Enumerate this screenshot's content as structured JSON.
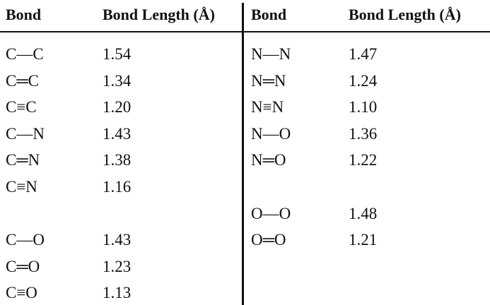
{
  "table": {
    "header": [
      "Bond",
      "Bond Length (Å)",
      "Bond",
      "Bond Length (Å)"
    ],
    "rows": [
      [
        "C—C",
        "1.54",
        "N—N",
        "1.47"
      ],
      [
        "C═C",
        "1.34",
        "N═N",
        "1.24"
      ],
      [
        "C≡C",
        "1.20",
        "N≡N",
        "1.10"
      ],
      [
        "C—N",
        "1.43",
        "N—O",
        "1.36"
      ],
      [
        "C═N",
        "1.38",
        "N═O",
        "1.22"
      ],
      [
        "C≡N",
        "1.16",
        null,
        null
      ],
      [
        null,
        null,
        "O—O",
        "1.48"
      ],
      [
        "C—O",
        "1.43",
        "O═O",
        "1.21"
      ],
      [
        "C═O",
        "1.23",
        null,
        null
      ],
      [
        "C≡O",
        "1.13",
        null,
        null
      ]
    ]
  }
}
